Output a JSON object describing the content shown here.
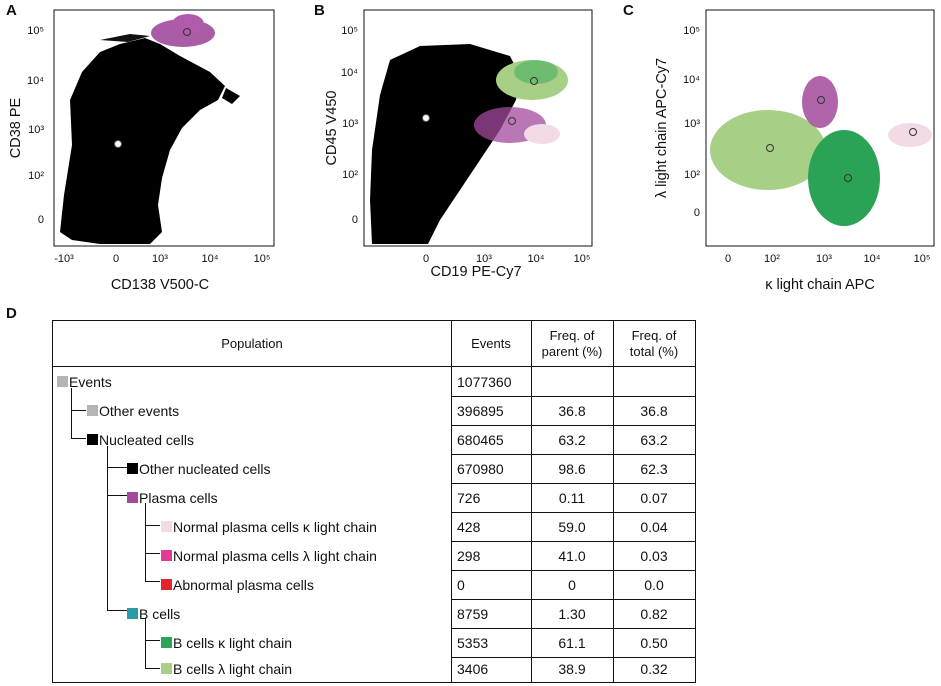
{
  "panels": {
    "A": {
      "letter": "A",
      "xlabel": "CD138 V500-C",
      "ylabel": "CD38 PE",
      "xticks": [
        "-10³",
        "0",
        "10³",
        "10⁴",
        "10⁵"
      ],
      "yticks": [
        "10⁵",
        "10⁴",
        "10³",
        "10²",
        "0"
      ]
    },
    "B": {
      "letter": "B",
      "xlabel": "CD19 PE-Cy7",
      "ylabel": "CD45 V450",
      "xticks": [
        "0",
        "10³",
        "10⁴",
        "10⁵"
      ],
      "yticks": [
        "10⁵",
        "10⁴",
        "10³",
        "10²",
        "0"
      ]
    },
    "C": {
      "letter": "C",
      "xlabel": "κ light chain APC",
      "ylabel": "λ light chain APC-Cy7",
      "xticks": [
        "0",
        "10²",
        "10³",
        "10⁴",
        "10⁵"
      ],
      "yticks": [
        "10⁵",
        "10⁴",
        "10³",
        "10²",
        "0"
      ]
    }
  },
  "colors": {
    "events": "#b3b3b8",
    "other_events": "#b3b3b8",
    "nucleated": "#000000",
    "other_nucleated": "#000000",
    "plasma": "#a24a9c",
    "normal_kappa": "#f2dbe6",
    "normal_lambda": "#e03c96",
    "abnormal": "#e0262b",
    "bcells": "#2a9ca8",
    "b_kappa": "#2aa356",
    "b_lambda": "#a7cf85"
  },
  "table": {
    "letter": "D",
    "headers": {
      "population": "Population",
      "events": "Events",
      "parent": "Freq. of parent (%)",
      "total": "Freq. of total (%)"
    },
    "rows": [
      {
        "name": "Events",
        "events": "1077360",
        "parent": "",
        "total": ""
      },
      {
        "name": "Other events",
        "events": "396895",
        "parent": "36.8",
        "total": "36.8"
      },
      {
        "name": "Nucleated cells",
        "events": "680465",
        "parent": "63.2",
        "total": "63.2"
      },
      {
        "name": "Other nucleated cells",
        "events": "670980",
        "parent": "98.6",
        "total": "62.3"
      },
      {
        "name": "Plasma cells",
        "events": "726",
        "parent": "0.11",
        "total": "0.07"
      },
      {
        "name": "Normal plasma cells κ light chain",
        "events": "428",
        "parent": "59.0",
        "total": "0.04"
      },
      {
        "name": "Normal plasma cells λ light chain",
        "events": "298",
        "parent": "41.0",
        "total": "0.03"
      },
      {
        "name": "Abnormal plasma cells",
        "events": "0",
        "parent": "0",
        "total": "0.0"
      },
      {
        "name": "B cells",
        "events": "8759",
        "parent": "1.30",
        "total": "0.82"
      },
      {
        "name": "B cells κ light chain",
        "events": "5353",
        "parent": "61.1",
        "total": "0.50"
      },
      {
        "name": "B cells λ light chain",
        "events": "3406",
        "parent": "38.9",
        "total": "0.32"
      }
    ]
  }
}
